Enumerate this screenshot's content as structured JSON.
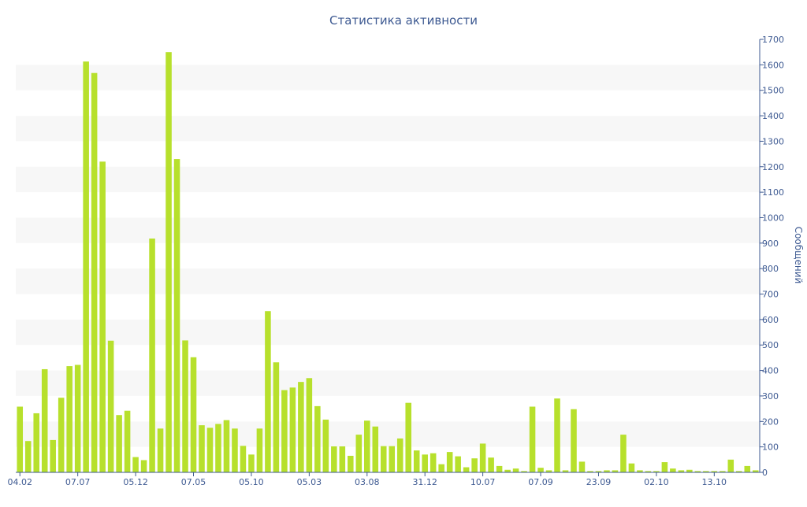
{
  "chart_data": {
    "type": "bar",
    "title": "Статистика активности",
    "xlabel": "",
    "ylabel": "Сообщений",
    "ylim": [
      0,
      1700
    ],
    "y_ticks": [
      0,
      100,
      200,
      300,
      400,
      500,
      600,
      700,
      800,
      900,
      1000,
      1100,
      1200,
      1300,
      1400,
      1500,
      1600,
      1700
    ],
    "x_tick_labels": [
      {
        "index": 0,
        "label": "04.02"
      },
      {
        "index": 7,
        "label": "07.07"
      },
      {
        "index": 14,
        "label": "05.12"
      },
      {
        "index": 21,
        "label": "07.05"
      },
      {
        "index": 28,
        "label": "05.10"
      },
      {
        "index": 35,
        "label": "05.03"
      },
      {
        "index": 42,
        "label": "03.08"
      },
      {
        "index": 49,
        "label": "31.12"
      },
      {
        "index": 56,
        "label": "10.07"
      },
      {
        "index": 63,
        "label": "07.09"
      },
      {
        "index": 70,
        "label": "23.09"
      },
      {
        "index": 77,
        "label": "02.10"
      },
      {
        "index": 84,
        "label": "13.10"
      }
    ],
    "values": [
      258,
      123,
      232,
      405,
      127,
      293,
      417,
      422,
      1613,
      1568,
      1220,
      517,
      225,
      242,
      60,
      48,
      918,
      172,
      1650,
      1230,
      518,
      452,
      185,
      175,
      190,
      205,
      172,
      104,
      70,
      172,
      633,
      432,
      323,
      333,
      355,
      370,
      260,
      207,
      102,
      102,
      65,
      148,
      203,
      180,
      103,
      103,
      133,
      273,
      86,
      70,
      75,
      32,
      80,
      63,
      20,
      55,
      113,
      58,
      25,
      10,
      15,
      5,
      258,
      18,
      8,
      290,
      8,
      248,
      42,
      5,
      5,
      8,
      8,
      148,
      35,
      8,
      5,
      5,
      40,
      15,
      8,
      10,
      5,
      5,
      5,
      5,
      50,
      5,
      25,
      8
    ],
    "grid": true,
    "grid_style": "alternating horizontal bands",
    "y_axis_side": "right",
    "colors": {
      "bar": "#b7e02c",
      "band": "#f7f7f7",
      "text": "#3e5a92",
      "axis": "#3e5a92"
    }
  }
}
